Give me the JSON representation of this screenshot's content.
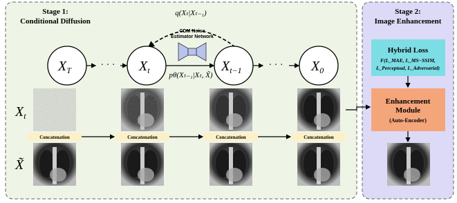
{
  "stage1": {
    "title_line1": "Stage 1:",
    "title_line2": "Conditional Diffusion"
  },
  "stage2": {
    "title_line1": "Stage 2:",
    "title_line2": "Image Enhancement"
  },
  "forward_label": "q(Xₜ|Xₜ₋₁)",
  "network_label": [
    "CDM Noise",
    "Estimator Network"
  ],
  "reverse_label": "pθ(Xₜ₋₁|Xₜ, X̃)",
  "nodes": [
    {
      "main": "X",
      "sub": "T"
    },
    {
      "main": "X",
      "sub": "t"
    },
    {
      "main": "X",
      "sub": "t−1"
    },
    {
      "main": "X",
      "sub": "0"
    }
  ],
  "row_labels": [
    {
      "main": "X",
      "sub": "t"
    },
    {
      "main": "X̃",
      "sub": ""
    }
  ],
  "concatenation": [
    "Concatenation",
    "Concatenation",
    "Concatenation",
    "Concatenation"
  ],
  "hybrid_loss": {
    "title": "Hybrid Loss",
    "formula_line1": "F(L_MAE, L_MS−SSIM,",
    "formula_line2": "L_Perceptual, L_Adversarial)"
  },
  "enhancement": {
    "title_line1": "Enhancement",
    "title_line2": "Module",
    "subtitle": "(Auto-Encoder)"
  }
}
